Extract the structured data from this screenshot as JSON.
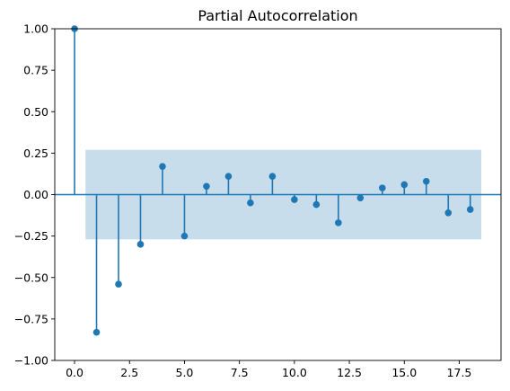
{
  "chart_data": {
    "type": "stem",
    "title": "Partial Autocorrelation",
    "xlabel": "",
    "ylabel": "",
    "xlim": [
      -0.9,
      19.4
    ],
    "ylim": [
      -1.0,
      1.0
    ],
    "x_ticks": [
      0,
      2.5,
      5,
      7.5,
      10,
      12.5,
      15,
      17.5
    ],
    "x_tick_labels": [
      "0.0",
      "2.5",
      "5.0",
      "7.5",
      "10.0",
      "12.5",
      "15.0",
      "17.5"
    ],
    "y_ticks": [
      -1.0,
      -0.75,
      -0.5,
      -0.25,
      0.0,
      0.25,
      0.5,
      0.75,
      1.0
    ],
    "y_tick_labels": [
      "−1.00",
      "−0.75",
      "−0.50",
      "−0.25",
      "0.00",
      "0.25",
      "0.50",
      "0.75",
      "1.00"
    ],
    "grid": false,
    "series": [
      {
        "x": [
          0,
          1,
          2,
          3,
          4,
          5,
          6,
          7,
          8,
          9,
          10,
          11,
          12,
          13,
          14,
          15,
          16,
          17,
          18
        ],
        "values": [
          1.0,
          -0.83,
          -0.54,
          -0.3,
          0.17,
          -0.25,
          0.05,
          0.11,
          -0.05,
          0.11,
          -0.03,
          -0.06,
          -0.17,
          -0.02,
          0.04,
          0.06,
          0.08,
          -0.11,
          -0.09
        ],
        "color": "#1f77b4"
      }
    ],
    "confidence_band": {
      "x_range": [
        0.5,
        18.5
      ],
      "lower": -0.27,
      "upper": 0.27,
      "color": "#1f77b4",
      "opacity": 0.25
    },
    "zero_line": {
      "y": 0,
      "color": "#1f77b4"
    }
  }
}
